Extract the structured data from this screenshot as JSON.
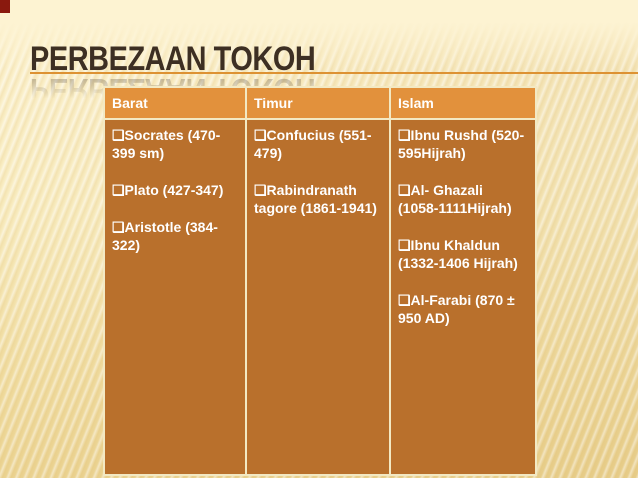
{
  "slide": {
    "title": "PERBEZAAN TOKOH"
  },
  "table": {
    "headers": [
      "Barat",
      "Timur",
      "Islam"
    ],
    "columns": [
      {
        "items": [
          "❑Socrates (470-399 sm)",
          "❑Plato (427-347)",
          "❑Aristotle (384-322)"
        ]
      },
      {
        "items": [
          "❑Confucius (551-479)",
          "❑Rabindranath tagore (1861-1941)"
        ]
      },
      {
        "items": [
          "❑Ibnu Rushd (520-595Hijrah)",
          "❑Al- Ghazali (1058-1111Hijrah)",
          "❑Ibnu Khaldun (1332-1406 Hijrah)",
          "❑Al-Farabi (870 ± 950 AD)"
        ]
      }
    ]
  },
  "colors": {
    "header_bg": "#E2913C",
    "cell_bg": "#B9702C",
    "table_border": "#F3E9C3",
    "accent_line": "#DD9233",
    "title_text": "#3D2F23",
    "corner_marker": "#8A190E",
    "background_top": "#FDF3D2",
    "background_bottom": "#EBD391",
    "cell_text": "#FFFFFF"
  }
}
